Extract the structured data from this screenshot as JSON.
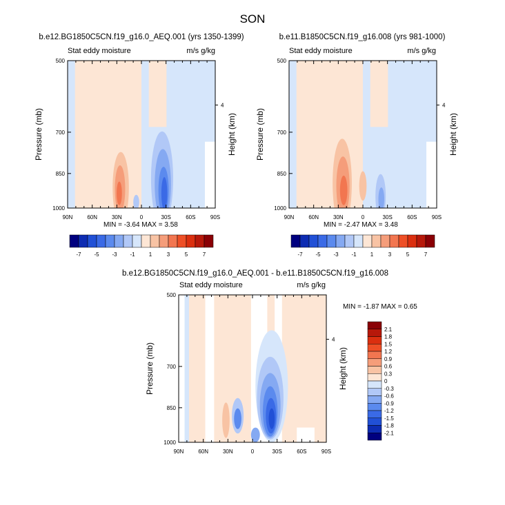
{
  "main_title": "SON",
  "panels": [
    {
      "title": "b.e12.BG1850C5CN.f19_g16.0_AEQ.001 (yrs 1350-1399)",
      "left_string": "Stat eddy moisture",
      "right_string": "m/s g/kg",
      "minmax": "MIN = -3.64  MAX =  3.58"
    },
    {
      "title": "b.e11.B1850C5CN.f19_g16.008 (yrs 981-1000)",
      "left_string": "Stat eddy moisture",
      "right_string": "m/s g/kg",
      "minmax": "MIN = -2.47  MAX =  3.48"
    },
    {
      "title": "b.e12.BG1850C5CN.f19_g16.0_AEQ.001 - b.e11.B1850C5CN.f19_g16.008",
      "left_string": "Stat eddy moisture",
      "right_string": "m/s g/kg",
      "minmax": "MIN = -1.87  MAX =  0.65"
    }
  ],
  "colors": {
    "neg": [
      "#00007f",
      "#0d2cb2",
      "#2150d6",
      "#3a6ae6",
      "#5b8aee",
      "#85a9f2",
      "#b1c8f7",
      "#d6e6fb"
    ],
    "pos": [
      "#fde6d5",
      "#f8c3a4",
      "#f59d7a",
      "#f27650",
      "#ee4f26",
      "#db2f0f",
      "#b7180a",
      "#8a0005"
    ]
  },
  "chart_data": [
    {
      "type": "heatmap",
      "panel": "AEQ.001 (yrs 1350-1399)",
      "xlabel": "",
      "ylabel": "Pressure (mb)",
      "y2label": "Height (km)",
      "x_tick_labels": [
        "90N",
        "60N",
        "30N",
        "0",
        "30S",
        "60S",
        "90S"
      ],
      "x_ticks": [
        90,
        60,
        30,
        0,
        -30,
        -60,
        -90
      ],
      "y_tick_labels": [
        "500",
        "700",
        "850",
        "1000"
      ],
      "y_ticks": [
        500,
        700,
        850,
        1000
      ],
      "y2_tick_labels": [
        "4"
      ],
      "xlim": [
        90,
        -90
      ],
      "ylim": [
        1000,
        500
      ],
      "levels": [
        -7,
        -6,
        -5,
        -4,
        -3,
        -2,
        -1,
        0,
        1,
        2,
        3,
        4,
        5,
        6,
        7
      ],
      "colorbar_labels": [
        "-7",
        "-5",
        "-3",
        "-1",
        "1",
        "3",
        "5",
        "7"
      ],
      "min": -3.64,
      "max": 3.58
    },
    {
      "type": "heatmap",
      "panel": "B1850C5CN.008 (yrs 981-1000)",
      "xlabel": "",
      "ylabel": "Pressure (mb)",
      "y2label": "Height (km)",
      "x_tick_labels": [
        "90N",
        "60N",
        "30N",
        "0",
        "30S",
        "60S",
        "90S"
      ],
      "x_ticks": [
        90,
        60,
        30,
        0,
        -30,
        -60,
        -90
      ],
      "y_tick_labels": [
        "500",
        "700",
        "850",
        "1000"
      ],
      "y_ticks": [
        500,
        700,
        850,
        1000
      ],
      "y2_tick_labels": [
        "4"
      ],
      "xlim": [
        90,
        -90
      ],
      "ylim": [
        1000,
        500
      ],
      "levels": [
        -7,
        -6,
        -5,
        -4,
        -3,
        -2,
        -1,
        0,
        1,
        2,
        3,
        4,
        5,
        6,
        7
      ],
      "colorbar_labels": [
        "-7",
        "-5",
        "-3",
        "-1",
        "1",
        "3",
        "5",
        "7"
      ],
      "min": -2.47,
      "max": 3.48
    },
    {
      "type": "heatmap",
      "panel": "difference",
      "xlabel": "",
      "ylabel": "Pressure (mb)",
      "y2label": "Height (km)",
      "x_tick_labels": [
        "90N",
        "60N",
        "30N",
        "0",
        "30S",
        "60S",
        "90S"
      ],
      "x_ticks": [
        90,
        60,
        30,
        0,
        -30,
        -60,
        -90
      ],
      "y_tick_labels": [
        "500",
        "700",
        "850",
        "1000"
      ],
      "y_ticks": [
        500,
        700,
        850,
        1000
      ],
      "y2_tick_labels": [
        "4"
      ],
      "xlim": [
        90,
        -90
      ],
      "ylim": [
        1000,
        500
      ],
      "levels": [
        -2.1,
        -1.8,
        -1.5,
        -1.2,
        -0.9,
        -0.6,
        -0.3,
        0,
        0.3,
        0.6,
        0.9,
        1.2,
        1.5,
        1.8,
        2.1
      ],
      "colorbar_labels": [
        "2.1",
        "1.8",
        "1.5",
        "1.2",
        "0.9",
        "0.6",
        "0.3",
        "0",
        "-0.3",
        "-0.6",
        "-0.9",
        "-1.2",
        "-1.5",
        "-1.8",
        "-2.1"
      ],
      "min": -1.87,
      "max": 0.65
    }
  ]
}
